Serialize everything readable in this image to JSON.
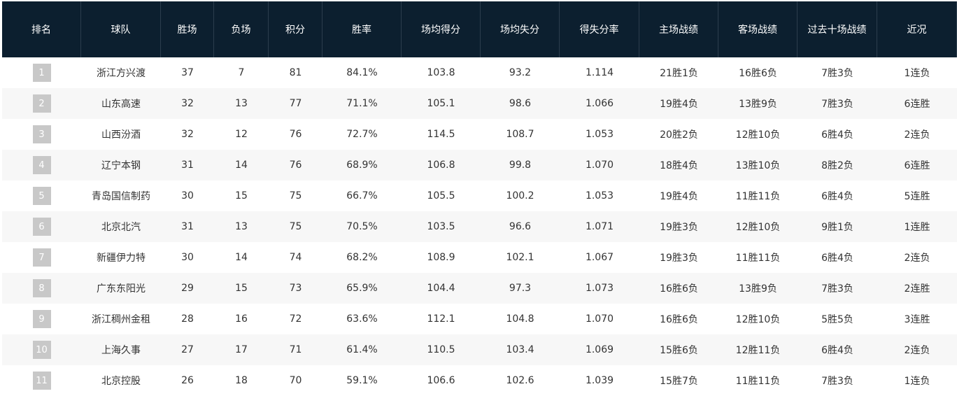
{
  "table": {
    "headers": [
      "排名",
      "球队",
      "胜场",
      "负场",
      "积分",
      "胜率",
      "场均得分",
      "场均失分",
      "得失分率",
      "主场战绩",
      "客场战绩",
      "过去十场战绩",
      "近况"
    ],
    "rows": [
      [
        "1",
        "浙江方兴渡",
        "37",
        "7",
        "81",
        "84.1%",
        "103.8",
        "93.2",
        "1.114",
        "21胜1负",
        "16胜6负",
        "7胜3负",
        "1连负"
      ],
      [
        "2",
        "山东高速",
        "32",
        "13",
        "77",
        "71.1%",
        "105.1",
        "98.6",
        "1.066",
        "19胜4负",
        "13胜9负",
        "7胜3负",
        "6连胜"
      ],
      [
        "3",
        "山西汾酒",
        "32",
        "12",
        "76",
        "72.7%",
        "114.5",
        "108.7",
        "1.053",
        "20胜2负",
        "12胜10负",
        "6胜4负",
        "2连负"
      ],
      [
        "4",
        "辽宁本钢",
        "31",
        "14",
        "76",
        "68.9%",
        "106.8",
        "99.8",
        "1.070",
        "18胜4负",
        "13胜10负",
        "8胜2负",
        "6连胜"
      ],
      [
        "5",
        "青岛国信制药",
        "30",
        "15",
        "75",
        "66.7%",
        "105.5",
        "100.2",
        "1.053",
        "19胜4负",
        "11胜11负",
        "6胜4负",
        "5连胜"
      ],
      [
        "6",
        "北京北汽",
        "31",
        "13",
        "75",
        "70.5%",
        "103.5",
        "96.6",
        "1.071",
        "19胜3负",
        "12胜10负",
        "9胜1负",
        "1连胜"
      ],
      [
        "7",
        "新疆伊力特",
        "30",
        "14",
        "74",
        "68.2%",
        "108.9",
        "102.1",
        "1.067",
        "19胜3负",
        "11胜11负",
        "6胜4负",
        "2连负"
      ],
      [
        "8",
        "广东东阳光",
        "29",
        "15",
        "73",
        "65.9%",
        "104.4",
        "97.3",
        "1.073",
        "16胜6负",
        "13胜9负",
        "7胜3负",
        "2连胜"
      ],
      [
        "9",
        "浙江稠州金租",
        "28",
        "16",
        "72",
        "63.6%",
        "112.1",
        "104.8",
        "1.070",
        "16胜6负",
        "12胜10负",
        "5胜5负",
        "3连胜"
      ],
      [
        "10",
        "上海久事",
        "27",
        "17",
        "71",
        "61.4%",
        "110.5",
        "103.4",
        "1.069",
        "15胜6负",
        "12胜11负",
        "6胜4负",
        "2连负"
      ],
      [
        "11",
        "北京控股",
        "26",
        "18",
        "70",
        "59.1%",
        "106.6",
        "102.6",
        "1.039",
        "15胜7负",
        "11胜11负",
        "7胜3负",
        "1连负"
      ]
    ]
  }
}
